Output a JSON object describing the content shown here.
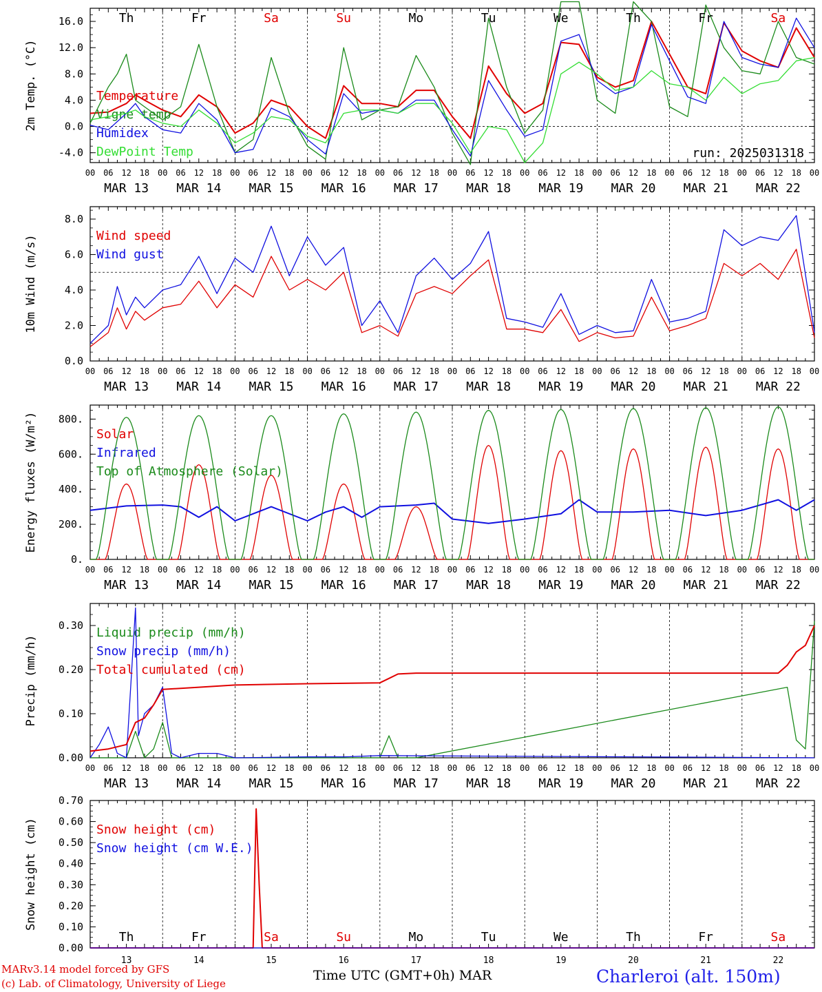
{
  "colors": {
    "red": "#e00000",
    "green": "#1a8a1a",
    "blue": "#1010e0",
    "lightgreen": "#33dd33",
    "grid": "#000000"
  },
  "weekdays": [
    {
      "label": "Th",
      "color": "#000000"
    },
    {
      "label": "Fr",
      "color": "#000000"
    },
    {
      "label": "Sa",
      "color": "#e00000"
    },
    {
      "label": "Su",
      "color": "#e00000"
    },
    {
      "label": "Mo",
      "color": "#000000"
    },
    {
      "label": "Tu",
      "color": "#000000"
    },
    {
      "label": "We",
      "color": "#000000"
    },
    {
      "label": "Th",
      "color": "#000000"
    },
    {
      "label": "Fr",
      "color": "#000000"
    },
    {
      "label": "Sa",
      "color": "#e00000"
    }
  ],
  "date_labels": [
    "MAR 13",
    "MAR 14",
    "MAR 15",
    "MAR 16",
    "MAR 17",
    "MAR 18",
    "MAR 19",
    "MAR 20",
    "MAR 21",
    "MAR 22"
  ],
  "hour_labels": [
    "00",
    "06",
    "12",
    "18"
  ],
  "last_hour_label": "00",
  "day_numbers": [
    "13",
    "14",
    "15",
    "16",
    "17",
    "18",
    "19",
    "20",
    "21",
    "22"
  ],
  "footer": {
    "model_line": "MARv3.14 model forced by GFS",
    "lab_line": "(c) Lab. of Climatology, University of Liege",
    "xlabel": "Time UTC (GMT+0h) MAR",
    "station": "Charleroi (alt. 150m)"
  },
  "chart_data": [
    {
      "type": "line",
      "ylabel": "2m Temp. (°C)",
      "ylim": [
        -5.5,
        18
      ],
      "yticks": [
        -4.0,
        0.0,
        4.0,
        8.0,
        12.0,
        16.0
      ],
      "ytick_labels": [
        "-4.0",
        "0.0",
        "4.0",
        "8.0",
        "12.0",
        "16.0"
      ],
      "reference_line": 0.0,
      "annotation": "run: 2025031318",
      "x_range_hours": [
        0,
        240
      ],
      "series": [
        {
          "name": "Temperature",
          "color": "#e00000",
          "x": [
            0,
            6,
            12,
            15,
            18,
            24,
            30,
            36,
            42,
            48,
            54,
            60,
            66,
            72,
            78,
            84,
            90,
            96,
            102,
            108,
            114,
            120,
            126,
            132,
            138,
            144,
            150,
            156,
            162,
            168,
            174,
            180,
            186,
            192,
            198,
            204,
            210,
            216,
            222,
            228,
            234,
            240
          ],
          "y": [
            2.0,
            2.2,
            3.5,
            4.8,
            4.0,
            2.5,
            1.5,
            4.8,
            3.0,
            -1.0,
            0.5,
            4.0,
            3.0,
            0.0,
            -1.8,
            6.2,
            3.5,
            3.5,
            3.0,
            5.5,
            5.5,
            1.5,
            -1.8,
            9.2,
            5.0,
            2.0,
            3.5,
            12.8,
            12.5,
            7.5,
            6.0,
            7.0,
            16.0,
            11.0,
            6.0,
            5.0,
            15.8,
            11.5,
            10.0,
            9.0,
            15.0,
            10.5
          ]
        },
        {
          "name": "Vigne temp",
          "color": "#1a8a1a",
          "x": [
            0,
            6,
            9,
            12,
            15,
            18,
            24,
            30,
            36,
            42,
            48,
            54,
            60,
            66,
            72,
            78,
            84,
            90,
            96,
            102,
            108,
            114,
            120,
            126,
            132,
            138,
            144,
            150,
            156,
            162,
            168,
            174,
            180,
            186,
            192,
            198,
            204,
            210,
            216,
            222,
            228,
            234,
            240
          ],
          "y": [
            0.5,
            6.0,
            8.0,
            11.0,
            4.0,
            3.0,
            1.0,
            3.0,
            12.5,
            3.0,
            -4.0,
            -2.0,
            10.5,
            2.0,
            -3.0,
            -5.0,
            12.0,
            1.0,
            2.5,
            3.0,
            10.8,
            6.0,
            -1.0,
            -5.8,
            16.5,
            6.0,
            -1.0,
            2.5,
            19.0,
            19.0,
            4.0,
            2.0,
            19.0,
            16.0,
            3.0,
            1.5,
            18.5,
            12.0,
            8.5,
            8.0,
            16.0,
            10.5,
            9.5
          ]
        },
        {
          "name": "Humidex",
          "color": "#1010e0",
          "x": [
            0,
            6,
            12,
            15,
            18,
            24,
            30,
            36,
            42,
            48,
            54,
            60,
            66,
            72,
            78,
            84,
            90,
            96,
            102,
            108,
            114,
            120,
            126,
            132,
            138,
            144,
            150,
            156,
            162,
            168,
            174,
            180,
            186,
            192,
            198,
            204,
            210,
            216,
            222,
            228,
            234,
            240
          ],
          "y": [
            0.2,
            -0.5,
            2.0,
            3.5,
            1.5,
            -0.5,
            -1.0,
            3.5,
            1.0,
            -4.0,
            -3.5,
            2.8,
            1.5,
            -2.0,
            -4.2,
            5.0,
            2.0,
            2.5,
            2.0,
            4.0,
            4.0,
            -0.5,
            -4.5,
            7.0,
            2.5,
            -1.5,
            -0.5,
            13.0,
            14.0,
            7.0,
            5.0,
            6.0,
            15.5,
            10.0,
            4.5,
            3.5,
            16.0,
            10.5,
            9.5,
            9.0,
            16.5,
            12.0
          ]
        },
        {
          "name": "DewPoint Temp",
          "color": "#33dd33",
          "x": [
            0,
            6,
            12,
            15,
            18,
            24,
            30,
            36,
            42,
            48,
            54,
            60,
            66,
            72,
            78,
            84,
            90,
            96,
            102,
            108,
            114,
            120,
            126,
            132,
            138,
            144,
            150,
            156,
            162,
            168,
            174,
            180,
            186,
            192,
            198,
            204,
            210,
            216,
            222,
            228,
            234,
            240
          ],
          "y": [
            1.0,
            1.5,
            2.0,
            2.5,
            1.5,
            0.5,
            0.0,
            2.5,
            0.5,
            -2.5,
            -1.0,
            1.5,
            1.0,
            -1.5,
            -2.5,
            2.0,
            2.5,
            2.5,
            2.0,
            3.5,
            3.5,
            0.5,
            -4.0,
            0.0,
            -0.5,
            -5.5,
            -2.5,
            8.0,
            9.8,
            8.0,
            5.5,
            6.0,
            8.5,
            6.5,
            6.0,
            4.0,
            7.5,
            5.0,
            6.5,
            7.0,
            10.0,
            10.5
          ]
        }
      ]
    },
    {
      "type": "line",
      "ylabel": "10m Wind (m/s)",
      "ylim": [
        0,
        8.7
      ],
      "yticks": [
        0.0,
        2.0,
        4.0,
        6.0,
        8.0
      ],
      "ytick_labels": [
        "0.0",
        "2.0",
        "4.0",
        "6.0",
        "8.0"
      ],
      "reference_line": 5.0,
      "x_range_hours": [
        0,
        240
      ],
      "series": [
        {
          "name": "Wind speed",
          "color": "#e00000",
          "x": [
            0,
            6,
            9,
            12,
            15,
            18,
            24,
            30,
            36,
            42,
            48,
            54,
            60,
            66,
            72,
            78,
            84,
            90,
            96,
            102,
            108,
            114,
            120,
            126,
            132,
            138,
            144,
            150,
            156,
            162,
            168,
            174,
            180,
            186,
            192,
            198,
            204,
            210,
            216,
            222,
            228,
            234,
            240
          ],
          "y": [
            0.8,
            1.6,
            3.0,
            1.8,
            2.8,
            2.3,
            3.0,
            3.2,
            4.5,
            3.0,
            4.3,
            3.6,
            5.9,
            4.0,
            4.6,
            4.0,
            5.0,
            1.6,
            2.0,
            1.4,
            3.8,
            4.2,
            3.8,
            4.8,
            5.7,
            1.8,
            1.8,
            1.6,
            2.9,
            1.1,
            1.6,
            1.3,
            1.4,
            3.6,
            1.7,
            2.0,
            2.4,
            5.5,
            4.8,
            5.5,
            4.6,
            6.3,
            1.3
          ]
        },
        {
          "name": "Wind gust",
          "color": "#1010e0",
          "x": [
            0,
            6,
            9,
            12,
            15,
            18,
            24,
            30,
            36,
            42,
            48,
            54,
            60,
            66,
            72,
            78,
            84,
            90,
            96,
            102,
            108,
            114,
            120,
            126,
            132,
            138,
            144,
            150,
            156,
            162,
            168,
            174,
            180,
            186,
            192,
            198,
            204,
            210,
            216,
            222,
            228,
            234,
            240
          ],
          "y": [
            1.0,
            2.0,
            4.2,
            2.6,
            3.6,
            3.0,
            4.0,
            4.3,
            5.9,
            3.8,
            5.8,
            5.0,
            7.6,
            4.8,
            7.0,
            5.4,
            6.4,
            2.0,
            3.4,
            1.6,
            4.8,
            5.8,
            4.6,
            5.5,
            7.3,
            2.4,
            2.2,
            1.9,
            3.8,
            1.5,
            2.0,
            1.6,
            1.7,
            4.6,
            2.2,
            2.4,
            2.8,
            7.4,
            6.5,
            7.0,
            6.8,
            8.2,
            1.6
          ]
        }
      ]
    },
    {
      "type": "line",
      "ylabel": "Energy fluxes (W/m²)",
      "ylim": [
        0,
        880
      ],
      "yticks": [
        0,
        200,
        400,
        600,
        800
      ],
      "ytick_labels": [
        "0.",
        "200.",
        "400.",
        "600.",
        "800."
      ],
      "x_range_hours": [
        0,
        240
      ],
      "series": [
        {
          "name": "Solar",
          "color": "#e00000",
          "peaks": [
            430,
            540,
            480,
            430,
            300,
            650,
            620,
            630,
            640,
            630
          ]
        },
        {
          "name": "Infrared",
          "color": "#1010e0",
          "x": [
            0,
            12,
            24,
            30,
            36,
            42,
            48,
            60,
            72,
            78,
            84,
            90,
            96,
            108,
            114,
            120,
            132,
            144,
            156,
            162,
            168,
            180,
            192,
            204,
            216,
            228,
            234,
            240
          ],
          "y": [
            280,
            305,
            310,
            300,
            240,
            300,
            220,
            300,
            220,
            270,
            300,
            240,
            300,
            310,
            320,
            230,
            205,
            230,
            260,
            340,
            270,
            270,
            280,
            250,
            280,
            340,
            280,
            340
          ]
        },
        {
          "name": "Top of Atmosphere (Solar)",
          "color": "#1a8a1a",
          "peaks": [
            810,
            820,
            820,
            830,
            840,
            850,
            855,
            860,
            865,
            870
          ]
        }
      ]
    },
    {
      "type": "line",
      "ylabel": "Precip (mm/h)",
      "ylim": [
        0,
        0.35
      ],
      "yticks": [
        0.0,
        0.1,
        0.2,
        0.3
      ],
      "ytick_labels": [
        "0.00",
        "0.10",
        "0.20",
        "0.30"
      ],
      "x_range_hours": [
        0,
        240
      ],
      "series": [
        {
          "name": "Liquid precip (mm/h)",
          "color": "#1a8a1a",
          "x": [
            0,
            12,
            15,
            18,
            21,
            24,
            27,
            30,
            96,
            99,
            102,
            105,
            108,
            231,
            234,
            237,
            240
          ],
          "y": [
            0,
            0,
            0.06,
            0,
            0.02,
            0.08,
            0,
            0,
            0,
            0.05,
            0,
            0,
            0,
            0.16,
            0.04,
            0.02,
            0.31
          ]
        },
        {
          "name": "Snow precip (mm/h)",
          "color": "#1010e0",
          "x": [
            0,
            3,
            6,
            9,
            12,
            15,
            16,
            18,
            21,
            24,
            27,
            30,
            36,
            42,
            48,
            72,
            84,
            96,
            240
          ],
          "y": [
            0,
            0.03,
            0.07,
            0.01,
            0,
            0.34,
            0.05,
            0.1,
            0.12,
            0.16,
            0.01,
            0,
            0.01,
            0.01,
            0,
            0.002,
            0.002,
            0.005,
            0
          ]
        },
        {
          "name": "Total cumulated (cm)",
          "color": "#e00000",
          "x": [
            0,
            6,
            12,
            15,
            18,
            21,
            24,
            36,
            48,
            72,
            96,
            99,
            102,
            108,
            120,
            144,
            168,
            192,
            216,
            228,
            231,
            234,
            237,
            240
          ],
          "y": [
            0.015,
            0.02,
            0.03,
            0.08,
            0.09,
            0.12,
            0.155,
            0.16,
            0.165,
            0.168,
            0.17,
            0.18,
            0.19,
            0.192,
            0.192,
            0.192,
            0.192,
            0.192,
            0.192,
            0.192,
            0.21,
            0.24,
            0.255,
            0.3
          ]
        }
      ]
    },
    {
      "type": "line",
      "ylabel": "Snow height (cm)",
      "ylim": [
        0,
        0.7
      ],
      "yticks": [
        0.0,
        0.1,
        0.2,
        0.3,
        0.4,
        0.5,
        0.6,
        0.7
      ],
      "ytick_labels": [
        "0.00",
        "0.10",
        "0.20",
        "0.30",
        "0.40",
        "0.50",
        "0.60",
        "0.70"
      ],
      "x_range_hours": [
        0,
        240
      ],
      "series": [
        {
          "name": "Snow height (cm)",
          "color": "#e00000",
          "x": [
            0,
            54,
            55,
            56,
            57,
            240
          ],
          "y": [
            0,
            0,
            0.66,
            0.3,
            0,
            0
          ]
        },
        {
          "name": "Snow height (cm W.E.)",
          "color": "#1010e0",
          "x": [
            0,
            240
          ],
          "y": [
            0,
            0
          ]
        }
      ]
    }
  ]
}
